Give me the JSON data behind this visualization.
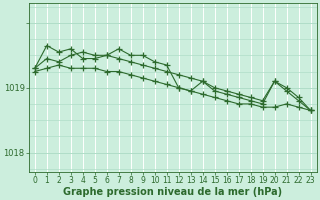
{
  "xlabel": "Graphe pression niveau de la mer (hPa)",
  "hours": [
    0,
    1,
    2,
    3,
    4,
    5,
    6,
    7,
    8,
    9,
    10,
    11,
    12,
    13,
    14,
    15,
    16,
    17,
    18,
    19,
    20,
    21,
    22,
    23
  ],
  "line1": [
    1019.25,
    1019.3,
    1019.35,
    1019.3,
    1019.3,
    1019.3,
    1019.25,
    1019.25,
    1019.2,
    1019.15,
    1019.1,
    1019.05,
    1019.0,
    1018.95,
    1018.9,
    1018.85,
    1018.8,
    1018.75,
    1018.75,
    1018.7,
    1018.7,
    1018.75,
    1018.7,
    1018.65
  ],
  "line2": [
    1019.3,
    1019.45,
    1019.4,
    1019.5,
    1019.55,
    1019.5,
    1019.5,
    1019.45,
    1019.4,
    1019.35,
    1019.3,
    1019.25,
    1019.2,
    1019.15,
    1019.1,
    1019.0,
    1018.95,
    1018.9,
    1018.85,
    1018.8,
    1019.1,
    1019.0,
    1018.85,
    1018.65
  ],
  "line3": [
    1019.3,
    1019.65,
    1019.55,
    1019.6,
    1019.45,
    1019.45,
    1019.5,
    1019.6,
    1019.5,
    1019.5,
    1019.4,
    1019.35,
    1019.0,
    1018.95,
    1019.1,
    1018.95,
    1018.9,
    1018.85,
    1018.8,
    1018.75,
    1019.1,
    1018.95,
    1018.8,
    1018.65
  ],
  "line_color": "#2d6a2d",
  "bg_color": "#cceedd",
  "grid_h_color": "#b0ddc8",
  "grid_v_color": "#ffffff",
  "ylim": [
    1017.7,
    1020.3
  ],
  "yticks": [
    1018.0,
    1019.0
  ],
  "ytick_labels": [
    "1018",
    "1019"
  ],
  "marker": "+",
  "linewidth": 0.8,
  "markersize": 4,
  "label_fontsize": 7,
  "tick_fontsize": 5.5
}
